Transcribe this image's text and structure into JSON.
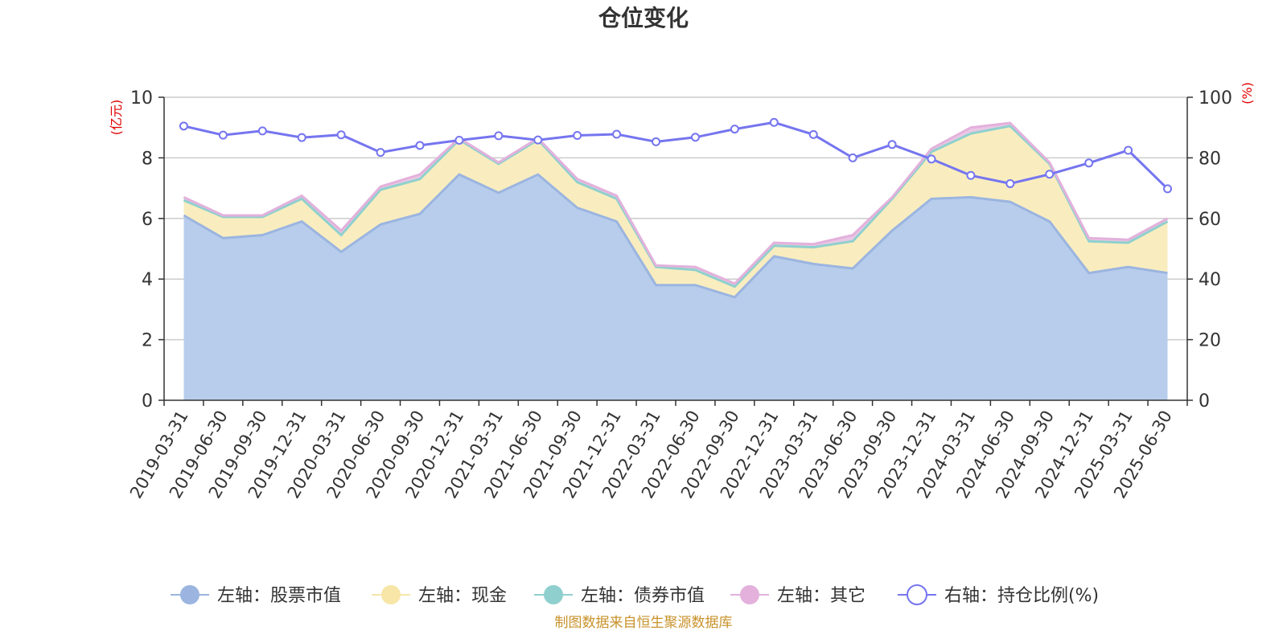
{
  "chart_data": {
    "type": "area",
    "title": "仓位变化",
    "left_axis_unit": "(亿元)",
    "right_axis_unit": "(%)",
    "left_ylim": [
      0,
      10
    ],
    "left_yticks": [
      "0",
      "2",
      "4",
      "6",
      "8",
      "10"
    ],
    "right_ylim": [
      0,
      100
    ],
    "right_yticks": [
      "0",
      "20",
      "40",
      "60",
      "80",
      "100"
    ],
    "categories": [
      "2019-03-31",
      "2019-06-30",
      "2019-09-30",
      "2019-12-31",
      "2020-03-31",
      "2020-06-30",
      "2020-09-30",
      "2020-12-31",
      "2021-03-31",
      "2021-06-30",
      "2021-09-30",
      "2021-12-31",
      "2022-03-31",
      "2022-06-30",
      "2022-09-30",
      "2022-12-31",
      "2023-03-31",
      "2023-06-30",
      "2023-09-30",
      "2023-12-31",
      "2024-03-31",
      "2024-06-30",
      "2024-09-30",
      "2024-12-31",
      "2025-03-31",
      "2025-06-30"
    ],
    "grid": true,
    "stacked": true,
    "legend_position": "bottom",
    "series": [
      {
        "name": "左轴：股票市值",
        "axis": "left",
        "color": "#9bb5e0",
        "fill": "#b8cdec",
        "values": [
          6.1,
          5.35,
          5.45,
          5.9,
          4.9,
          5.8,
          6.15,
          7.45,
          6.85,
          7.45,
          6.35,
          5.9,
          3.8,
          3.8,
          3.4,
          4.75,
          4.5,
          4.35,
          5.6,
          6.65,
          6.7,
          6.55,
          5.9,
          4.2,
          4.4,
          4.2
        ]
      },
      {
        "name": "左轴：现金",
        "axis": "left",
        "color": "#f7e6a7",
        "fill": "#f9edbf",
        "values": [
          0.5,
          0.7,
          0.6,
          0.75,
          0.55,
          1.15,
          1.15,
          1.15,
          0.95,
          1.15,
          0.85,
          0.75,
          0.6,
          0.5,
          0.35,
          0.35,
          0.55,
          0.9,
          1.05,
          1.55,
          2.1,
          2.5,
          1.9,
          1.05,
          0.8,
          1.7
        ]
      },
      {
        "name": "左轴：债券市值",
        "axis": "left",
        "color": "#8fd0cf",
        "fill": "#a9dbd8",
        "values": [
          0,
          0,
          0,
          0,
          0,
          0,
          0,
          0,
          0,
          0,
          0,
          0,
          0,
          0,
          0,
          0,
          0,
          0,
          0,
          0,
          0,
          0,
          0,
          0,
          0,
          0
        ]
      },
      {
        "name": "左轴：其它",
        "axis": "left",
        "color": "#e3b1dc",
        "fill": "#eac7e6",
        "values": [
          0.1,
          0.05,
          0.05,
          0.1,
          0.15,
          0.1,
          0.15,
          0.05,
          0.05,
          0.05,
          0.1,
          0.1,
          0.05,
          0.1,
          0.1,
          0.1,
          0.1,
          0.2,
          0.05,
          0.1,
          0.2,
          0.1,
          0.05,
          0.1,
          0.1,
          0.1
        ]
      },
      {
        "name": "右轴：持仓比例(%)",
        "axis": "right",
        "type": "line",
        "color": "#7575f0",
        "values": [
          90.5,
          87.5,
          88.9,
          86.7,
          87.6,
          81.8,
          84.1,
          85.8,
          87.3,
          85.9,
          87.4,
          87.8,
          85.3,
          86.8,
          89.5,
          91.7,
          87.7,
          80.0,
          84.4,
          79.6,
          74.2,
          71.5,
          74.6,
          78.3,
          82.5,
          69.8
        ]
      }
    ],
    "source": "制图数据来自恒生聚源数据库"
  }
}
